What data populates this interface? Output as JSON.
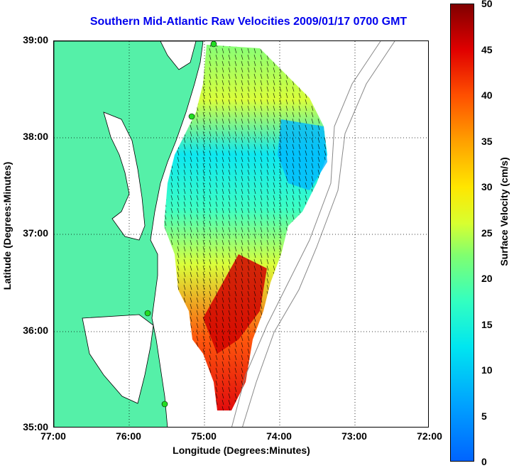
{
  "title": "Southern Mid-Atlantic Raw Velocities 2009/01/17 0700 GMT",
  "axes": {
    "x_label": "Longitude (Degrees:Minutes)",
    "y_label": "Latitude (Degrees:Minutes)",
    "x_ticks": [
      "77:00",
      "76:00",
      "75:00",
      "74:00",
      "73:00",
      "72:00"
    ],
    "y_ticks": [
      "39:00",
      "38:00",
      "37:00",
      "36:00",
      "35:00"
    ]
  },
  "colorbar": {
    "label": "Surface Velocity (cm/s)",
    "ticks": [
      "50",
      "45",
      "40",
      "35",
      "30",
      "25",
      "20",
      "15",
      "10",
      "5",
      "0"
    ],
    "range": [
      0,
      50
    ],
    "colors": [
      "#0064ff",
      "#00e6f0",
      "#33ffc0",
      "#d8ff30",
      "#ffe600",
      "#ff5000",
      "#800000"
    ]
  },
  "map": {
    "land_color": "#55f0a8",
    "lon_range": [
      -77,
      -72
    ],
    "lat_range": [
      35,
      39
    ],
    "grid": "dotted",
    "stations_color": "#22dd22"
  }
}
